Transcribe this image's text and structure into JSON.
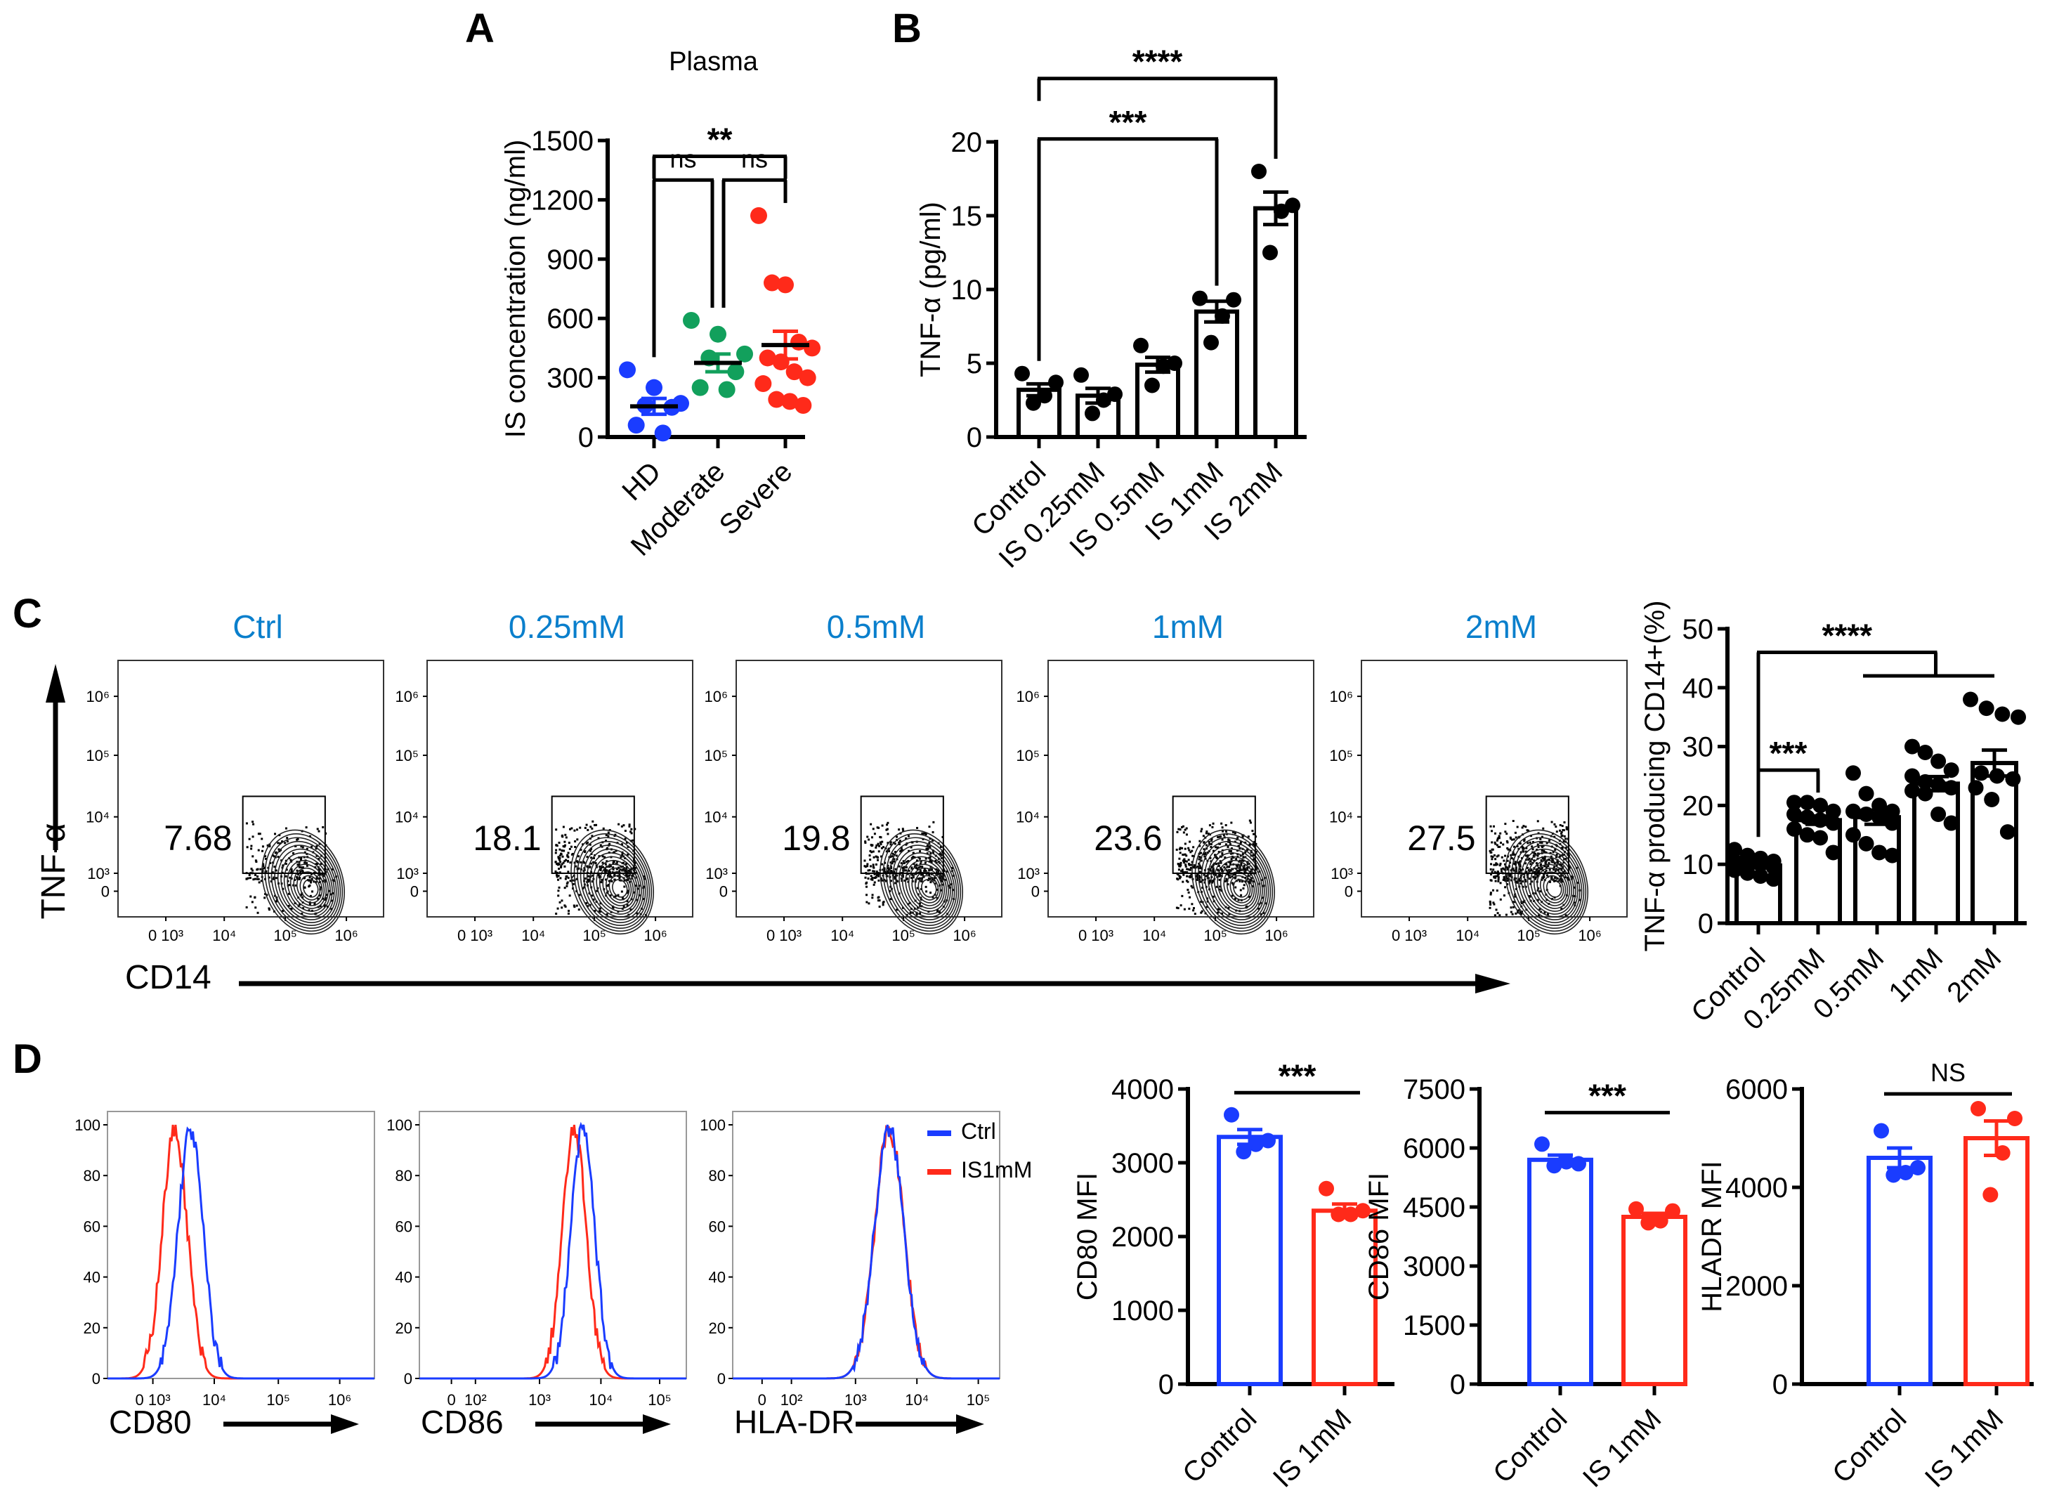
{
  "figure_labels": {
    "A": "A",
    "B": "B",
    "C": "C",
    "D": "D"
  },
  "colors": {
    "blue": "#1a3cff",
    "green": "#12a05c",
    "red": "#ff2a1a",
    "flow_title": "#0a7fcc",
    "black": "#000000"
  },
  "chart_data": [
    {
      "id": "A",
      "type": "scatter",
      "title": "Plasma",
      "ylabel": "IS concentration (ng/ml)",
      "ylim": [
        0,
        1500
      ],
      "yticks": [
        0,
        300,
        600,
        900,
        1200,
        1500
      ],
      "categories": [
        "HD",
        "Moderate",
        "Severe"
      ],
      "colors": [
        "#1a3cff",
        "#12a05c",
        "#ff2a1a"
      ],
      "points": [
        [
          340,
          250,
          170,
          160,
          150,
          60,
          20
        ],
        [
          590,
          520,
          420,
          400,
          330,
          250,
          240
        ],
        [
          1120,
          780,
          770,
          480,
          450,
          400,
          380,
          330,
          300,
          270,
          190,
          180,
          160
        ]
      ],
      "means": [
        155,
        375,
        465
      ],
      "sem": [
        40,
        45,
        70
      ],
      "brackets": [
        {
          "from": 0,
          "to": 2,
          "y": 1420,
          "label": "**",
          "legs": [
            "short",
            "short"
          ]
        },
        {
          "from": 0,
          "to": 1,
          "y": 1300,
          "label": "ns",
          "legs": [
            "auto",
            "auto"
          ]
        },
        {
          "from": 1,
          "to": 2,
          "y": 1300,
          "label": "ns",
          "legs": [
            "auto",
            "auto"
          ]
        }
      ]
    },
    {
      "id": "B",
      "type": "bar",
      "title": "",
      "ylabel": "TNF-α (pg/ml)",
      "ylim": [
        0,
        20
      ],
      "yticks": [
        0,
        5,
        10,
        15,
        20
      ],
      "categories": [
        "Control",
        "IS 0.25mM",
        "IS 0.5mM",
        "IS 1mM",
        "IS 2mM"
      ],
      "colors": [
        "#000000",
        "#000000",
        "#000000",
        "#000000",
        "#000000"
      ],
      "points": [
        [
          4.3,
          3.7,
          2.8,
          2.3
        ],
        [
          4.2,
          2.9,
          2.5,
          1.6
        ],
        [
          6.2,
          5.0,
          4.8,
          3.5
        ],
        [
          9.4,
          9.3,
          8.2,
          6.4
        ],
        [
          18.0,
          15.7,
          15.3,
          12.5
        ]
      ],
      "means": [
        3.2,
        2.8,
        4.9,
        8.5,
        15.5
      ],
      "sem": [
        0.4,
        0.5,
        0.5,
        0.7,
        1.1
      ],
      "brackets": [
        {
          "from": 0,
          "to": 3,
          "y": 20.2,
          "label": "***",
          "legs": [
            "auto",
            "auto"
          ]
        },
        {
          "from": 0,
          "to": 4,
          "y": 24.3,
          "label": "****",
          "legs": [
            "short",
            "auto"
          ]
        }
      ]
    },
    {
      "id": "C-bar",
      "type": "bar",
      "title": "",
      "ylabel": "TNF-α producing CD14+(%)",
      "ylim": [
        0,
        50
      ],
      "yticks": [
        0,
        10,
        20,
        30,
        40,
        50
      ],
      "categories": [
        "Control",
        "0.25mM",
        "0.5mM",
        "1mM",
        "2mM"
      ],
      "colors": [
        "#000000",
        "#000000",
        "#000000",
        "#000000",
        "#000000"
      ],
      "points": [
        [
          12.5,
          11.5,
          11,
          10.5,
          10.5,
          10,
          10,
          9.5,
          9,
          8.5,
          8,
          7.5
        ],
        [
          20.5,
          20.5,
          20,
          19,
          18.5,
          18,
          17.5,
          17,
          16,
          15,
          14.5,
          12
        ],
        [
          25.5,
          22,
          20,
          19,
          19,
          18.5,
          18,
          17,
          15,
          13.5,
          12,
          11.5
        ],
        [
          30,
          29,
          27.5,
          26,
          25,
          24,
          23.5,
          23,
          22.5,
          22,
          18.5,
          17
        ],
        [
          38,
          36.5,
          35.5,
          35,
          25.5,
          25,
          24.5,
          23,
          21,
          15.5
        ]
      ],
      "means": [
        9.8,
        17.5,
        18.0,
        23.7,
        27.2
      ],
      "sem": [
        0.4,
        0.7,
        1.2,
        1.2,
        2.2
      ],
      "brackets": [
        {
          "from": 0,
          "to": 1,
          "y": 26,
          "label": "***",
          "legs": [
            "short",
            "short"
          ]
        },
        {
          "from": 0,
          "to_group": [
            2,
            4
          ],
          "y": 46,
          "y2": 42,
          "label": "****",
          "legs": [
            "auto",
            "short"
          ]
        }
      ]
    },
    {
      "id": "D-CD80",
      "type": "bar",
      "title": "",
      "ylabel": "CD80 MFI",
      "ylim": [
        0,
        4000
      ],
      "yticks": [
        0,
        1000,
        2000,
        3000,
        4000
      ],
      "categories": [
        "Control",
        "IS 1mM"
      ],
      "colors": [
        "#1a3cff",
        "#ff2a1a"
      ],
      "points": [
        [
          3650,
          3300,
          3250,
          3150
        ],
        [
          2650,
          2350,
          2300,
          2300
        ]
      ],
      "means": [
        3350,
        2350
      ],
      "sem": [
        100,
        90
      ],
      "brackets": [
        {
          "from": 0,
          "to": 1,
          "y": 3950,
          "label": "***",
          "legs": [
            "none",
            "none"
          ]
        }
      ]
    },
    {
      "id": "D-CD86",
      "type": "bar",
      "title": "",
      "ylabel": "CD86 MFI",
      "ylim": [
        0,
        7500
      ],
      "yticks": [
        0,
        1500,
        3000,
        4500,
        6000,
        7500
      ],
      "categories": [
        "Control",
        "IS 1mM"
      ],
      "colors": [
        "#1a3cff",
        "#ff2a1a"
      ],
      "points": [
        [
          6100,
          5600,
          5650,
          5550
        ],
        [
          4450,
          4400,
          4150,
          4100
        ]
      ],
      "means": [
        5700,
        4250
      ],
      "sem": [
        120,
        90
      ],
      "brackets": [
        {
          "from": 0,
          "to": 1,
          "y": 6900,
          "label": "***",
          "legs": [
            "none",
            "none"
          ]
        }
      ]
    },
    {
      "id": "D-HLADR",
      "type": "bar",
      "title": "",
      "ylabel": "HLADR MFI",
      "ylim": [
        0,
        6000
      ],
      "yticks": [
        0,
        2000,
        4000,
        6000
      ],
      "categories": [
        "Control",
        "IS 1mM"
      ],
      "colors": [
        "#1a3cff",
        "#ff2a1a"
      ],
      "points": [
        [
          5150,
          4400,
          4300,
          4250
        ],
        [
          5600,
          5400,
          4700,
          3850
        ]
      ],
      "means": [
        4600,
        5000
      ],
      "sem": [
        200,
        350
      ],
      "brackets": [
        {
          "from": 0,
          "to": 1,
          "y": 5900,
          "label": "NS",
          "legs": [
            "none",
            "none"
          ]
        }
      ]
    },
    {
      "id": "C-flow",
      "type": "scatter",
      "y_axis_label": "TNF-α",
      "x_axis_label": "CD14",
      "y_ticks": [
        "10⁶",
        "10⁵",
        "10⁴",
        "10³",
        "0"
      ],
      "x_ticks": [
        "0 10³",
        "10⁴",
        "10⁵",
        "10⁶"
      ],
      "plots": [
        {
          "title": "Ctrl",
          "gate_percent": "7.68"
        },
        {
          "title": "0.25mM",
          "gate_percent": "18.1"
        },
        {
          "title": "0.5mM",
          "gate_percent": "19.8"
        },
        {
          "title": "1mM",
          "gate_percent": "23.6"
        },
        {
          "title": "2mM",
          "gate_percent": "27.5"
        }
      ]
    },
    {
      "id": "D-histograms",
      "type": "area",
      "y_ticks": [
        "0",
        "20",
        "40",
        "60",
        "80",
        "100"
      ],
      "legend": [
        {
          "label": "Ctrl",
          "color": "#1a3cff"
        },
        {
          "label": "IS1mM",
          "color": "#ff2a1a"
        }
      ],
      "panels": [
        {
          "marker": "CD80",
          "x_ticks": [
            "0 10³",
            "10⁴",
            "10⁵",
            "10⁶"
          ],
          "ctrl_peak_log10": 3.6,
          "is_peak_log10": 3.35,
          "spread_log10": 0.2
        },
        {
          "marker": "CD86",
          "x_ticks": [
            "0",
            "10²",
            "10³",
            "10⁴",
            "10⁵"
          ],
          "ctrl_peak_log10": 3.72,
          "is_peak_log10": 3.58,
          "spread_log10": 0.2
        },
        {
          "marker": "HLA-DR",
          "x_ticks": [
            "0",
            "10²",
            "10³",
            "10⁴",
            "10⁵"
          ],
          "ctrl_peak_log10": 3.55,
          "is_peak_log10": 3.55,
          "spread_log10": 0.24
        }
      ]
    }
  ]
}
